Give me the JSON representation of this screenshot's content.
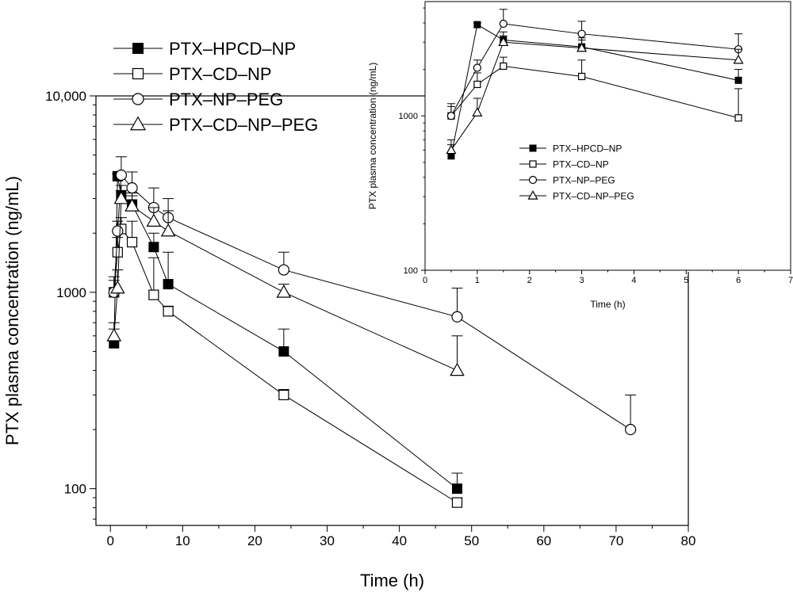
{
  "chart_data": [
    {
      "type": "line",
      "title": "",
      "xlabel": "Time (h)",
      "ylabel": "PTX plasma concentration (ng/mL)",
      "yscale": "log",
      "xlim": [
        -2,
        80
      ],
      "ylim": [
        65,
        10000
      ],
      "xticks": [
        0,
        10,
        20,
        30,
        40,
        50,
        60,
        70,
        80
      ],
      "xtick_labels": [
        "0",
        "10",
        "20",
        "30",
        "40",
        "50",
        "60",
        "70",
        "80"
      ],
      "yticks": [
        100,
        1000,
        10000
      ],
      "ytick_labels": [
        "100",
        "1000",
        "10,000"
      ],
      "grid": false,
      "legend_position": "top-left",
      "series": [
        {
          "name": "PTX–HPCD–NP",
          "marker": "filled-square",
          "x": [
            0.5,
            1,
            1.5,
            3,
            6,
            8,
            24,
            48
          ],
          "y": [
            550,
            3900,
            3100,
            2800,
            1700,
            1100,
            500,
            100
          ],
          "err_upper": [
            650,
            4000,
            3300,
            3100,
            2000,
            1600,
            650,
            120
          ]
        },
        {
          "name": "PTX–CD–NP",
          "marker": "open-square",
          "x": [
            0.5,
            1,
            1.5,
            3,
            6,
            8,
            24,
            48
          ],
          "y": [
            1000,
            1600,
            2100,
            1800,
            970,
            800,
            300,
            85
          ],
          "err_upper": [
            1150,
            1900,
            2400,
            2300,
            1500,
            850,
            320,
            90
          ]
        },
        {
          "name": "PTX–NP–PEG",
          "marker": "open-circle",
          "x": [
            0.5,
            1,
            1.5,
            3,
            6,
            8,
            24,
            48,
            72
          ],
          "y": [
            1000,
            2050,
            3950,
            3400,
            2700,
            2400,
            1300,
            750,
            200
          ],
          "err_upper": [
            1200,
            2300,
            4900,
            4100,
            3400,
            3000,
            1600,
            1050,
            300
          ]
        },
        {
          "name": "PTX–CD–NP–PEG",
          "marker": "open-triangle",
          "x": [
            0.5,
            1,
            1.5,
            3,
            6,
            8,
            24,
            48
          ],
          "y": [
            600,
            1050,
            3000,
            2750,
            2300,
            2050,
            1000,
            400
          ],
          "err_upper": [
            700,
            1300,
            3500,
            3200,
            2700,
            2600,
            1100,
            600
          ]
        }
      ]
    },
    {
      "type": "line",
      "title": "",
      "xlabel": "Time (h)",
      "ylabel": "PTX plasma concentration (ng/mL)",
      "yscale": "log",
      "xlim": [
        0,
        7
      ],
      "ylim": [
        100,
        5500
      ],
      "xticks": [
        0,
        1,
        2,
        3,
        4,
        5,
        6,
        7
      ],
      "xtick_labels": [
        "0",
        "1",
        "2",
        "3",
        "4",
        "5",
        "6",
        "7"
      ],
      "yticks": [
        100,
        1000
      ],
      "ytick_labels": [
        "100",
        "1000"
      ],
      "grid": false,
      "legend_position": "center",
      "series": [
        {
          "name": "PTX–HPCD–NP",
          "marker": "filled-square",
          "x": [
            0.5,
            1,
            1.5,
            3,
            6
          ],
          "y": [
            550,
            3900,
            3100,
            2800,
            1700
          ],
          "err_upper": [
            650,
            4000,
            3300,
            3100,
            2000
          ]
        },
        {
          "name": "PTX–CD–NP",
          "marker": "open-square",
          "x": [
            0.5,
            1,
            1.5,
            3,
            6
          ],
          "y": [
            1000,
            1600,
            2100,
            1800,
            970
          ],
          "err_upper": [
            1150,
            1900,
            2400,
            2300,
            1500
          ]
        },
        {
          "name": "PTX–NP–PEG",
          "marker": "open-circle",
          "x": [
            0.5,
            1,
            1.5,
            3,
            6
          ],
          "y": [
            1000,
            2050,
            3950,
            3400,
            2700
          ],
          "err_upper": [
            1200,
            2300,
            4900,
            4100,
            3400
          ]
        },
        {
          "name": "PTX–CD–NP–PEG",
          "marker": "open-triangle",
          "x": [
            0.5,
            1,
            1.5,
            3,
            6
          ],
          "y": [
            600,
            1050,
            3000,
            2750,
            2300
          ],
          "err_upper": [
            700,
            1300,
            3500,
            3200,
            2700
          ]
        }
      ]
    }
  ]
}
